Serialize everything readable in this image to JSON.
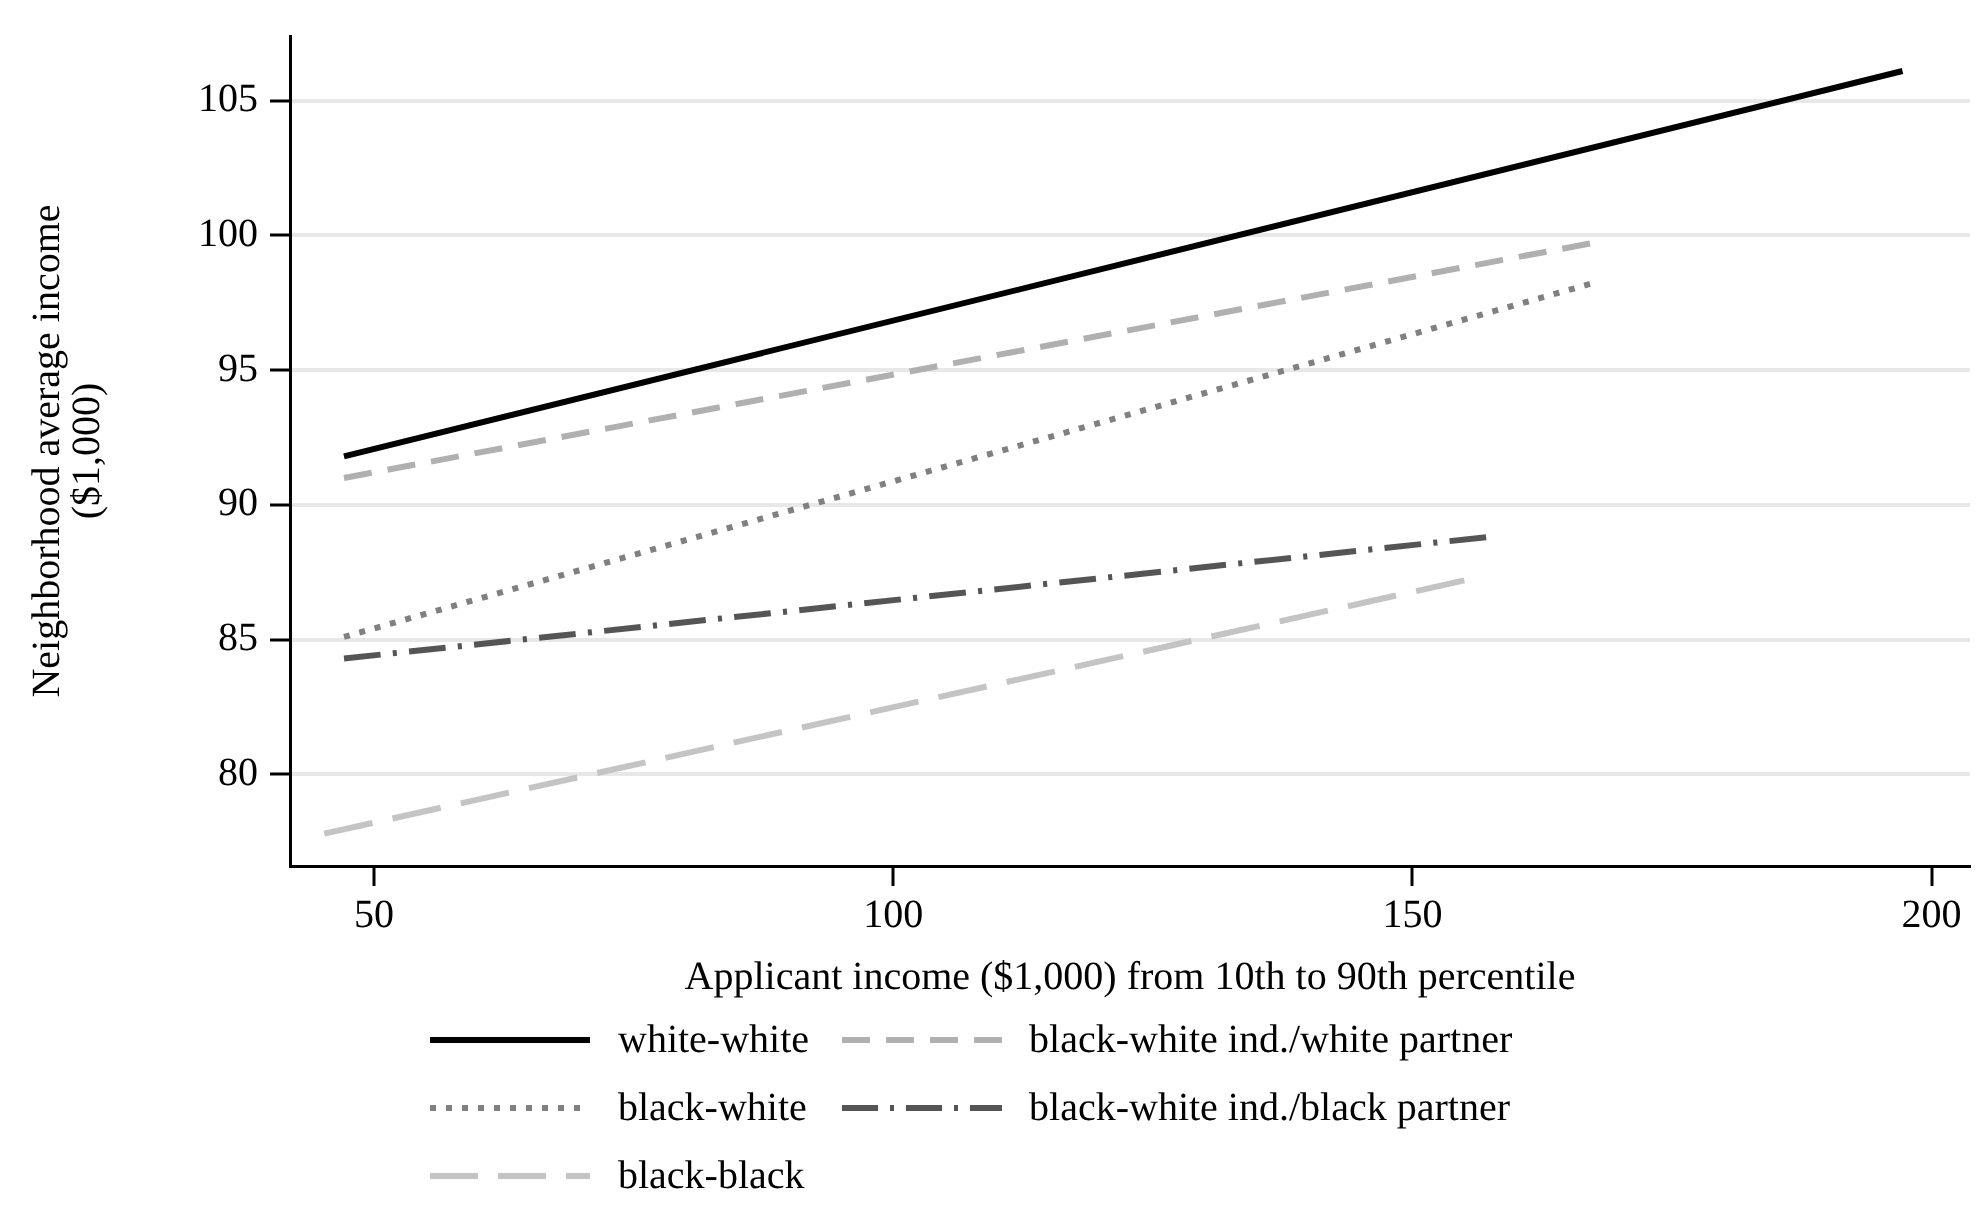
{
  "chart_data": {
    "type": "line",
    "xlabel": "Applicant income ($1,000) from 10th to 90th percentile",
    "ylabel": "Neighborhood average income\n($1,000)",
    "xlim": [
      41.9,
      203.7
    ],
    "xticks": [
      50,
      100,
      150,
      200
    ],
    "ylim": [
      76.6,
      107.4
    ],
    "yticks": [
      80,
      85,
      90,
      95,
      100,
      105
    ],
    "grid": "y",
    "legend": "bottom",
    "marker": "none",
    "series": [
      {
        "name": "white-white",
        "color": "#000000",
        "line_style": "solid",
        "x": [
          47.1,
          197.2
        ],
        "values": [
          91.8,
          106.1
        ]
      },
      {
        "name": "black-white ind./white partner",
        "color": "#b0b0b0",
        "line_style": "dashed",
        "x": [
          47.1,
          167.1
        ],
        "values": [
          91.0,
          99.7
        ]
      },
      {
        "name": "black-white",
        "color": "#808080",
        "line_style": "dotted",
        "x": [
          47.1,
          167.1
        ],
        "values": [
          85.1,
          98.2
        ]
      },
      {
        "name": "black-white ind./black partner",
        "color": "#555555",
        "line_style": "dashdot",
        "x": [
          47.1,
          157.1
        ],
        "values": [
          84.3,
          88.8
        ]
      },
      {
        "name": "black-black",
        "color": "#c4c4c4",
        "line_style": "longdash",
        "x": [
          45.2,
          155.0
        ],
        "values": [
          77.8,
          87.2
        ]
      }
    ]
  }
}
